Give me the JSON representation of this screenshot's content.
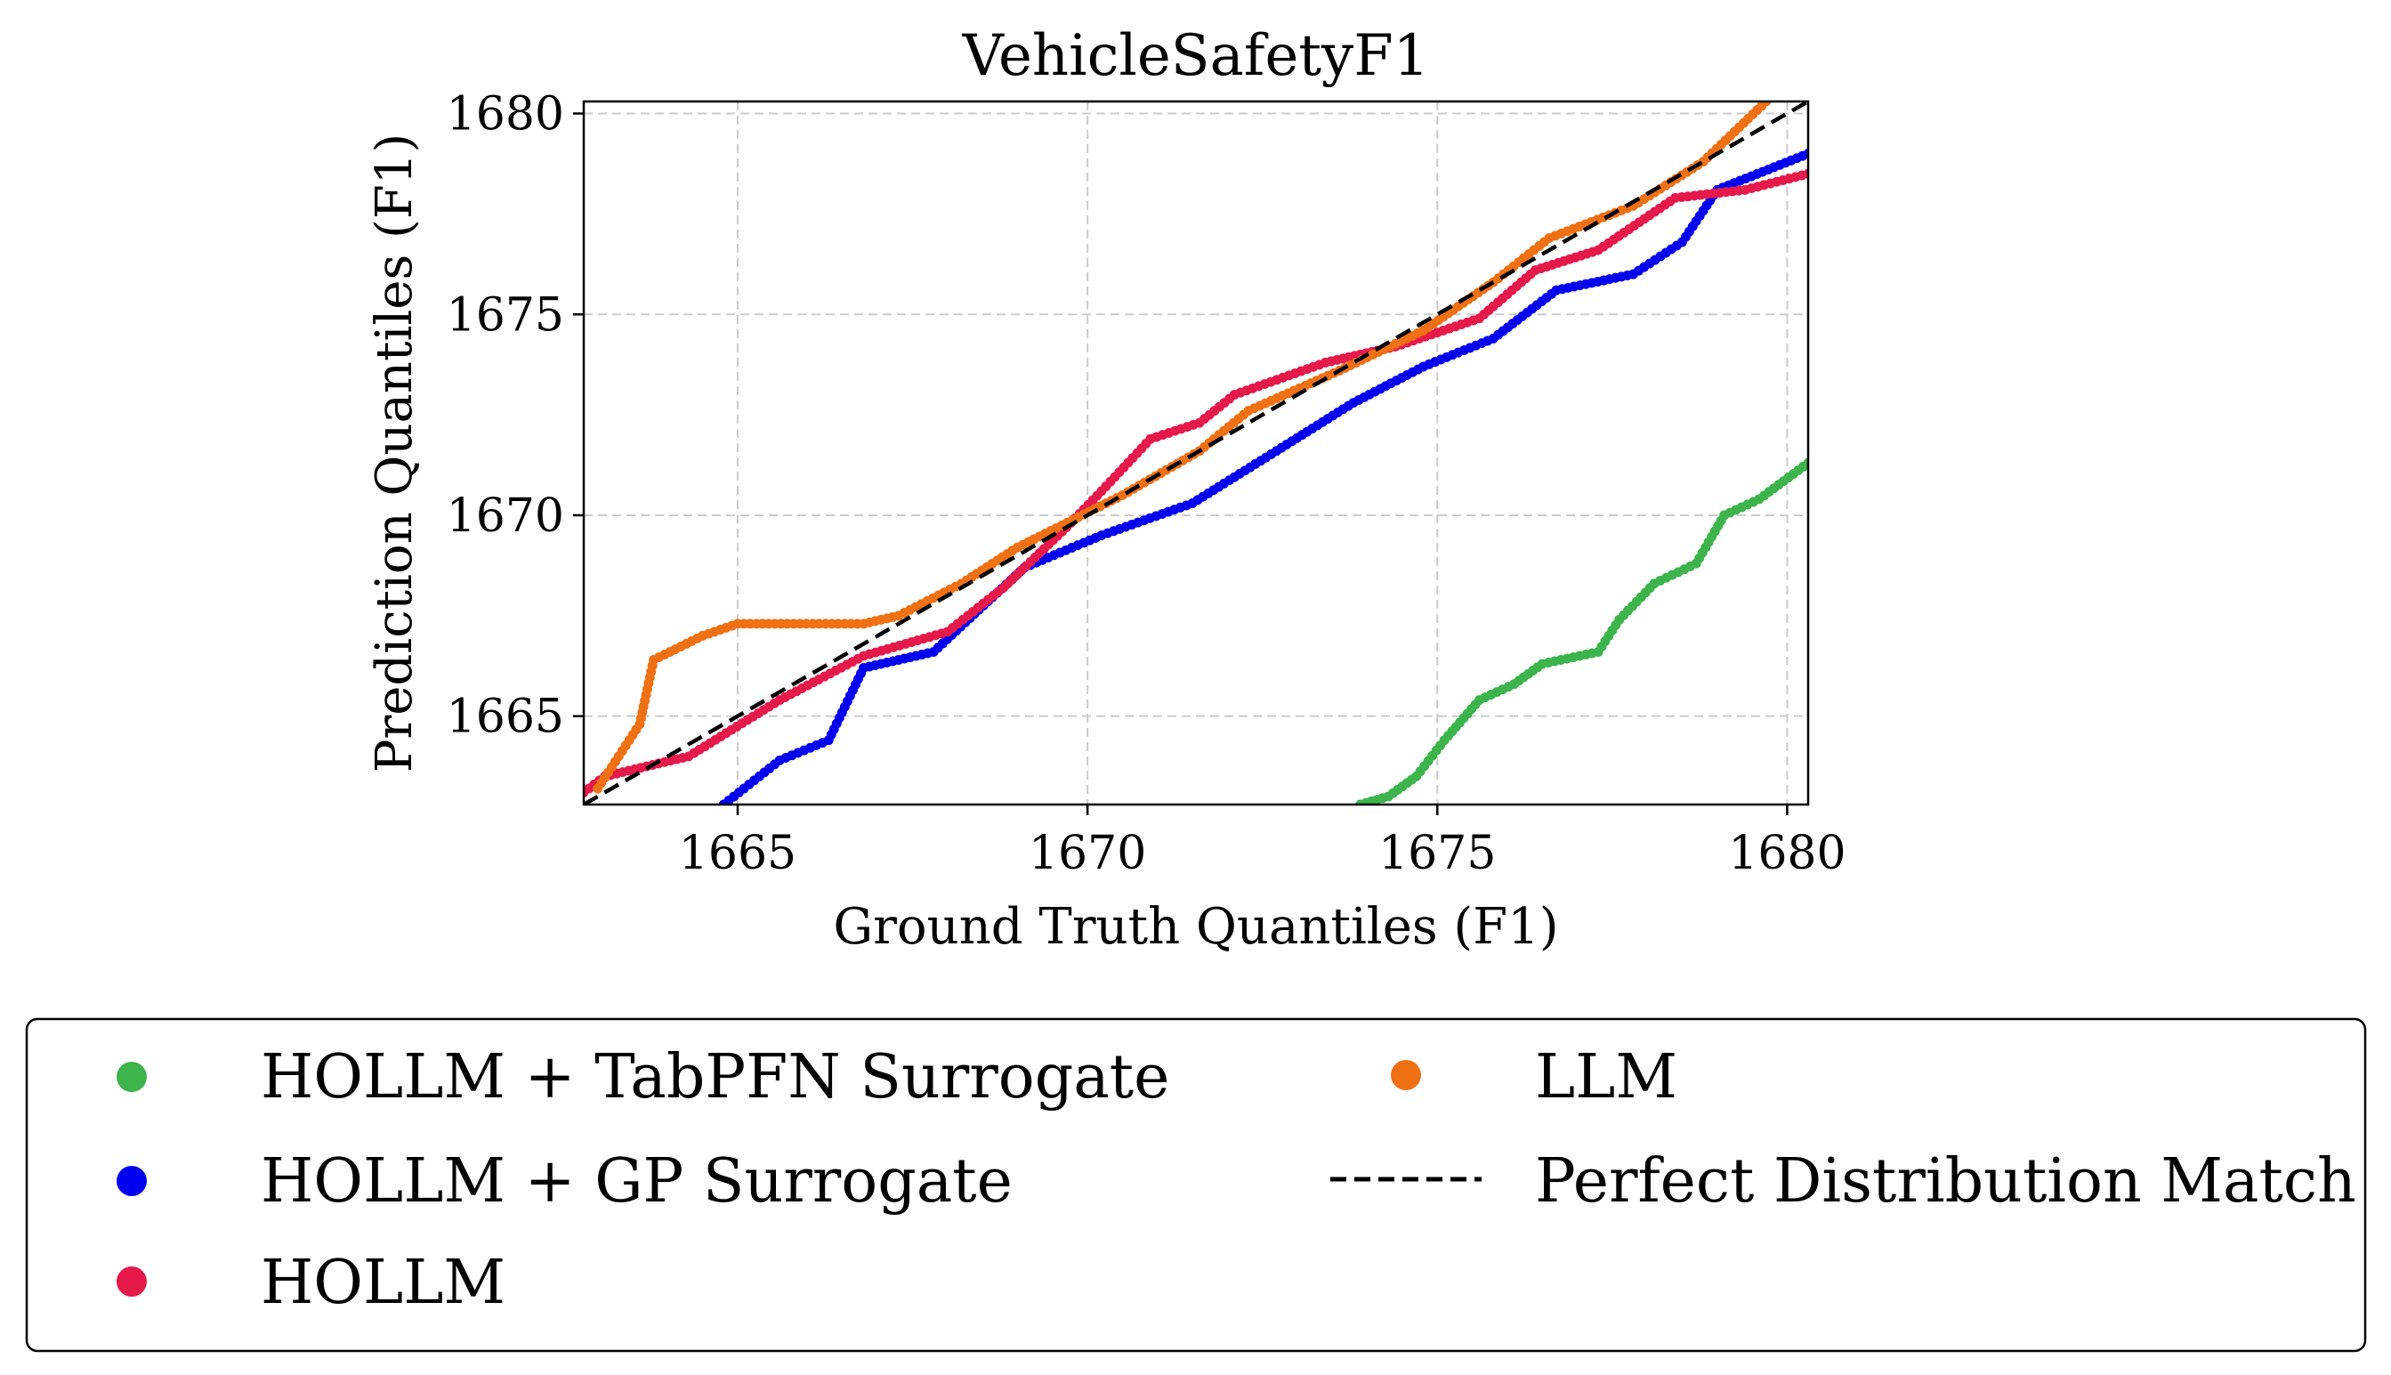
{
  "chart_data": {
    "type": "scatter",
    "title": "VehicleSafetyF1",
    "xlabel": "Ground Truth Quantiles (F1)",
    "ylabel": "Prediction Quantiles (F1)",
    "xlim": [
      1662.8,
      1680.3
    ],
    "ylim": [
      1662.8,
      1680.3
    ],
    "xticks": [
      1665,
      1670,
      1675,
      1680
    ],
    "yticks": [
      1665,
      1670,
      1675,
      1680
    ],
    "xtick_labels": [
      "1665",
      "1670",
      "1675",
      "1680"
    ],
    "ytick_labels": [
      "1665",
      "1670",
      "1675",
      "1680"
    ],
    "grid": true,
    "legend_position": "below",
    "series": [
      {
        "name": "HOLLM + TabPFN Surrogate",
        "color": "#3cb44b",
        "points": [
          [
            1673.9,
            1662.8
          ],
          [
            1674.3,
            1663.0
          ],
          [
            1674.7,
            1663.5
          ],
          [
            1675.1,
            1664.4
          ],
          [
            1675.6,
            1665.4
          ],
          [
            1676.1,
            1665.8
          ],
          [
            1676.5,
            1666.3
          ],
          [
            1677.3,
            1666.6
          ],
          [
            1677.6,
            1667.4
          ],
          [
            1678.1,
            1668.3
          ],
          [
            1678.7,
            1668.8
          ],
          [
            1679.1,
            1670.0
          ],
          [
            1679.6,
            1670.4
          ],
          [
            1680.3,
            1671.3
          ]
        ]
      },
      {
        "name": "HOLLM + GP Surrogate",
        "color": "#0000ee",
        "points": [
          [
            1664.8,
            1662.8
          ],
          [
            1665.6,
            1663.9
          ],
          [
            1666.3,
            1664.4
          ],
          [
            1666.8,
            1666.2
          ],
          [
            1667.8,
            1666.6
          ],
          [
            1669.1,
            1668.7
          ],
          [
            1670.2,
            1669.5
          ],
          [
            1671.5,
            1670.3
          ],
          [
            1672.7,
            1671.6
          ],
          [
            1673.8,
            1672.8
          ],
          [
            1674.8,
            1673.7
          ],
          [
            1675.8,
            1674.4
          ],
          [
            1676.7,
            1675.6
          ],
          [
            1677.8,
            1676.0
          ],
          [
            1678.5,
            1676.8
          ],
          [
            1679.0,
            1678.1
          ],
          [
            1680.3,
            1679.0
          ]
        ]
      },
      {
        "name": "HOLLM",
        "color": "#e6194b",
        "points": [
          [
            1662.8,
            1663.1
          ],
          [
            1663.1,
            1663.5
          ],
          [
            1664.3,
            1664.0
          ],
          [
            1665.6,
            1665.4
          ],
          [
            1666.8,
            1666.5
          ],
          [
            1668.0,
            1667.1
          ],
          [
            1668.8,
            1668.2
          ],
          [
            1669.7,
            1669.7
          ],
          [
            1670.2,
            1670.6
          ],
          [
            1670.9,
            1671.9
          ],
          [
            1671.6,
            1672.3
          ],
          [
            1672.1,
            1673.0
          ],
          [
            1673.4,
            1673.8
          ],
          [
            1674.4,
            1674.2
          ],
          [
            1675.6,
            1674.9
          ],
          [
            1676.4,
            1676.1
          ],
          [
            1677.3,
            1676.6
          ],
          [
            1678.4,
            1677.9
          ],
          [
            1679.4,
            1678.1
          ],
          [
            1680.3,
            1678.5
          ]
        ]
      },
      {
        "name": "LLM",
        "color": "#f07014",
        "points": [
          [
            1663.0,
            1663.2
          ],
          [
            1663.6,
            1664.8
          ],
          [
            1663.8,
            1666.4
          ],
          [
            1664.5,
            1667.0
          ],
          [
            1665.0,
            1667.3
          ],
          [
            1665.8,
            1667.3
          ],
          [
            1666.8,
            1667.3
          ],
          [
            1667.3,
            1667.5
          ],
          [
            1668.2,
            1668.3
          ],
          [
            1669.0,
            1669.2
          ],
          [
            1670.5,
            1670.5
          ],
          [
            1671.6,
            1671.6
          ],
          [
            1672.3,
            1672.6
          ],
          [
            1673.6,
            1673.6
          ],
          [
            1674.8,
            1674.6
          ],
          [
            1675.8,
            1675.8
          ],
          [
            1676.6,
            1676.9
          ],
          [
            1677.8,
            1677.7
          ],
          [
            1678.8,
            1678.8
          ],
          [
            1679.7,
            1680.3
          ]
        ]
      },
      {
        "name": "Perfect Distribution Match",
        "color": "#000000",
        "style": "dashed-line",
        "points": [
          [
            1662.8,
            1662.8
          ],
          [
            1680.3,
            1680.3
          ]
        ]
      }
    ]
  }
}
